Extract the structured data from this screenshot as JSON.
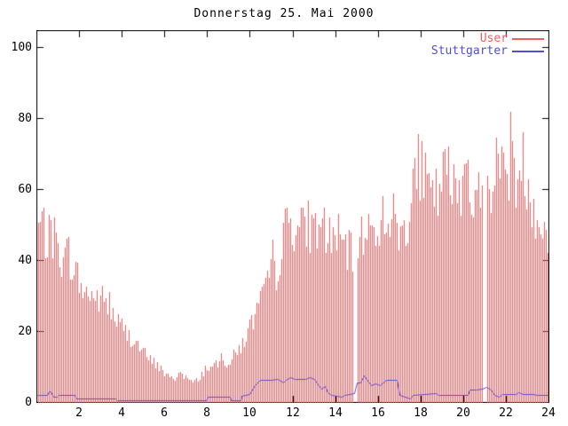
{
  "window": {
    "title_text": "Donnerstag 25. Mai 2000"
  },
  "chart_data": {
    "type": "bar",
    "title": "Donnerstag 25. Mai 2000",
    "xlabel": "",
    "ylabel": "",
    "x_unit": "hour-of-day",
    "x_range": [
      0,
      24
    ],
    "y_range": [
      0,
      104.75
    ],
    "xticks": [
      2,
      4,
      6,
      8,
      10,
      12,
      14,
      16,
      18,
      20,
      22,
      24
    ],
    "yticks": [
      0,
      20,
      40,
      60,
      80,
      100
    ],
    "grid": false,
    "legend_position": "top-right-inside",
    "bar_interval_minutes": 5,
    "gaps_t": [
      [
        14.87,
        15.05
      ],
      [
        20.92,
        21.08
      ]
    ],
    "series": [
      {
        "name": "User",
        "type": "impulses",
        "color": "#ef5f5f",
        "envelope_start_t": 0,
        "envelope_dt": 0.25,
        "envelope_v": [
          48,
          51,
          45,
          47,
          43,
          40,
          42,
          37,
          34,
          30,
          31,
          29,
          29,
          28,
          25,
          23,
          21,
          19,
          18,
          16,
          14,
          12,
          11,
          10,
          8,
          6.5,
          7,
          8.5,
          7,
          5.5,
          6,
          8,
          10,
          9.5,
          10.5,
          12,
          11,
          13,
          15,
          18,
          21,
          25,
          28,
          31,
          34,
          37,
          45,
          50,
          51,
          49,
          48,
          50,
          48,
          47,
          49,
          46,
          47,
          45,
          43,
          41,
          43,
          46,
          48,
          49,
          50,
          52,
          54,
          51,
          47,
          49,
          53,
          62,
          68,
          60,
          57,
          58,
          62,
          65,
          59,
          61,
          64,
          61,
          58,
          57,
          58,
          62,
          66,
          67,
          68,
          65,
          63,
          68,
          62,
          57,
          52,
          48,
          44
        ]
      },
      {
        "name": "Stuttgarter",
        "type": "line",
        "color": "#4f4fd0",
        "points_t": [
          0,
          0.5,
          0.58,
          0.65,
          0.78,
          0.95,
          1.05,
          1.8,
          1.87,
          3.7,
          3.78,
          7.95,
          8.02,
          9.05,
          9.12,
          9.55,
          9.62,
          10.0,
          10.25,
          10.5,
          11.0,
          11.3,
          11.55,
          11.7,
          11.9,
          12.1,
          12.6,
          12.8,
          13.0,
          13.2,
          13.35,
          13.5,
          13.65,
          13.8,
          14.3,
          14.45,
          14.9,
          15.0,
          15.2,
          15.35,
          15.55,
          15.7,
          15.9,
          16.1,
          16.4,
          16.9,
          17.0,
          17.5,
          17.65,
          18.7,
          18.85,
          20.2,
          20.3,
          20.6,
          20.9,
          21.1,
          21.3,
          21.45,
          21.65,
          21.85,
          22.45,
          22.6,
          22.8,
          23.3,
          23.45,
          24
        ],
        "points_v": [
          2.0,
          2.0,
          3.0,
          3.0,
          1.5,
          1.5,
          1.9,
          1.9,
          1.0,
          1.0,
          0.5,
          0.5,
          1.5,
          1.5,
          0.6,
          0.6,
          1.7,
          2.2,
          4.8,
          6.3,
          6.3,
          6.6,
          5.6,
          6.3,
          7.0,
          6.5,
          6.5,
          7.1,
          6.6,
          4.9,
          3.7,
          4.5,
          2.8,
          2.1,
          1.4,
          2.0,
          2.4,
          5.4,
          5.4,
          7.4,
          5.8,
          4.8,
          5.3,
          4.8,
          6.2,
          6.2,
          1.9,
          1.1,
          1.9,
          2.4,
          1.9,
          1.9,
          3.6,
          3.4,
          3.8,
          4.2,
          3.4,
          2.1,
          1.4,
          2.3,
          2.3,
          2.7,
          2.2,
          2.2,
          1.9,
          1.9
        ]
      }
    ]
  },
  "axis_labels": {
    "y": [
      "0",
      "20",
      "40",
      "60",
      "80",
      "100"
    ],
    "x": [
      "2",
      "4",
      "6",
      "8",
      "10",
      "12",
      "14",
      "16",
      "18",
      "20",
      "22",
      "24"
    ]
  },
  "colors": {
    "background": "#ffffff",
    "border": "#000000",
    "text": "#000000",
    "user_series": "#ef5f5f",
    "stuttgarter_series": "#4f4fd0"
  }
}
